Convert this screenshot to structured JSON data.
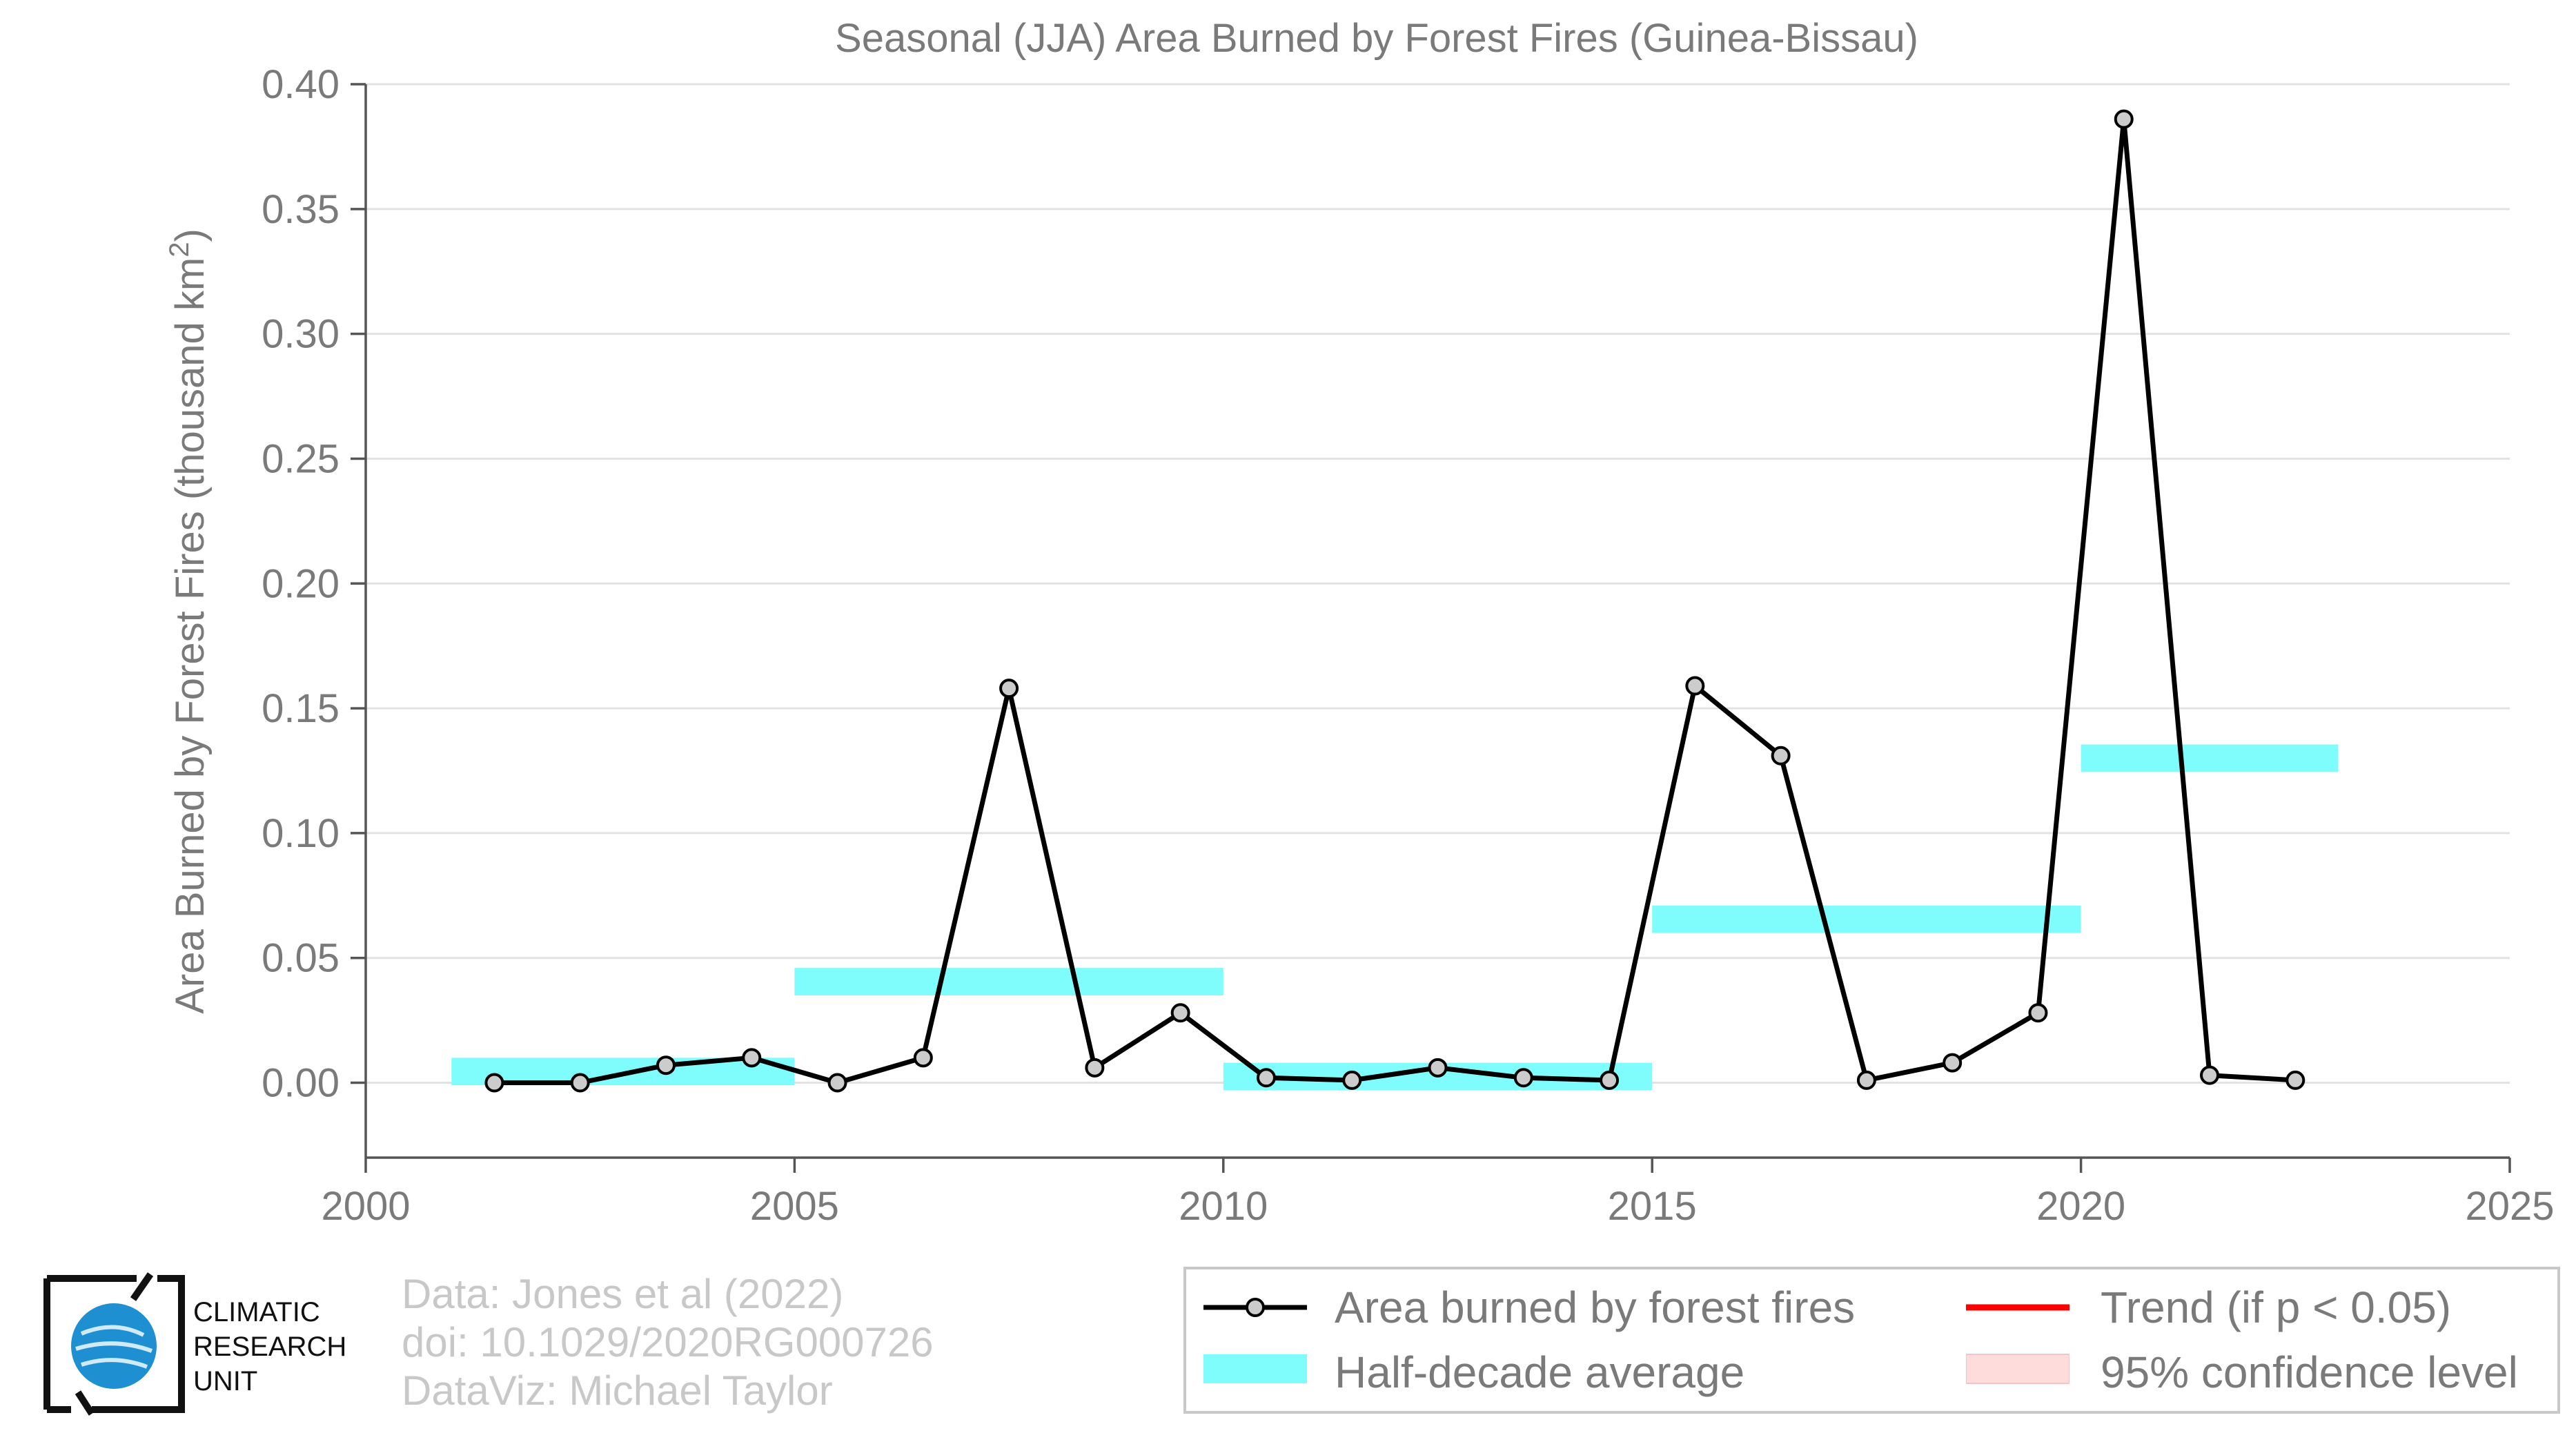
{
  "chart_data": {
    "type": "line",
    "title": "Seasonal (JJA) Area Burned by Forest Fires (Guinea-Bissau)",
    "ylabel": "Area Burned by Forest Fires (thousand km²)",
    "xlim": [
      2000,
      2025
    ],
    "ylim": [
      -0.03,
      0.4
    ],
    "x_ticks": [
      "2000",
      "2005",
      "2010",
      "2015",
      "2020",
      "2025"
    ],
    "y_ticks": [
      "0.00",
      "0.05",
      "0.10",
      "0.15",
      "0.20",
      "0.25",
      "0.30",
      "0.35",
      "0.40"
    ],
    "grid": true,
    "series": [
      {
        "name": "Area burned by forest fires",
        "color": "#000000",
        "x": [
          2001.5,
          2002.5,
          2003.5,
          2004.5,
          2005.5,
          2006.5,
          2007.5,
          2008.5,
          2009.5,
          2010.5,
          2011.5,
          2012.5,
          2013.5,
          2014.5,
          2015.5,
          2016.5,
          2017.5,
          2018.5,
          2019.5,
          2020.5,
          2021.5,
          2022.5
        ],
        "values": [
          0.0,
          0.0,
          0.007,
          0.01,
          0.0,
          0.01,
          0.158,
          0.006,
          0.028,
          0.002,
          0.001,
          0.006,
          0.002,
          0.001,
          0.159,
          0.131,
          0.001,
          0.008,
          0.028,
          0.386,
          0.003,
          0.001
        ]
      },
      {
        "name": "Half-decade average",
        "color": "#7ffcfc",
        "segments": [
          {
            "x_start": 2001,
            "x_end": 2005,
            "value": 0.0045
          },
          {
            "x_start": 2005,
            "x_end": 2010,
            "value": 0.0405
          },
          {
            "x_start": 2010,
            "x_end": 2015,
            "value": 0.0025
          },
          {
            "x_start": 2015,
            "x_end": 2020,
            "value": 0.0655
          },
          {
            "x_start": 2020,
            "x_end": 2023,
            "value": 0.13
          }
        ]
      }
    ],
    "legend": {
      "placement": "bottom-right",
      "entries": [
        {
          "label": "Area burned by forest fires",
          "symbol": "line-marker",
          "color": "#000000"
        },
        {
          "label": "Trend (if p < 0.05)",
          "symbol": "line",
          "color": "#ff0000"
        },
        {
          "label": "Half-decade average",
          "symbol": "band",
          "color": "#7ffcfc"
        },
        {
          "label": "95% confidence level",
          "symbol": "band",
          "color": "#ffdcdc"
        }
      ]
    }
  },
  "credits": {
    "line1": "Data: Jones et al (2022)",
    "line2": "doi: 10.1029/2020RG000726",
    "line3": "DataViz: Michael Taylor"
  },
  "logo": {
    "line1": "CLIMATIC",
    "line2": "RESEARCH",
    "line3": "UNIT"
  }
}
